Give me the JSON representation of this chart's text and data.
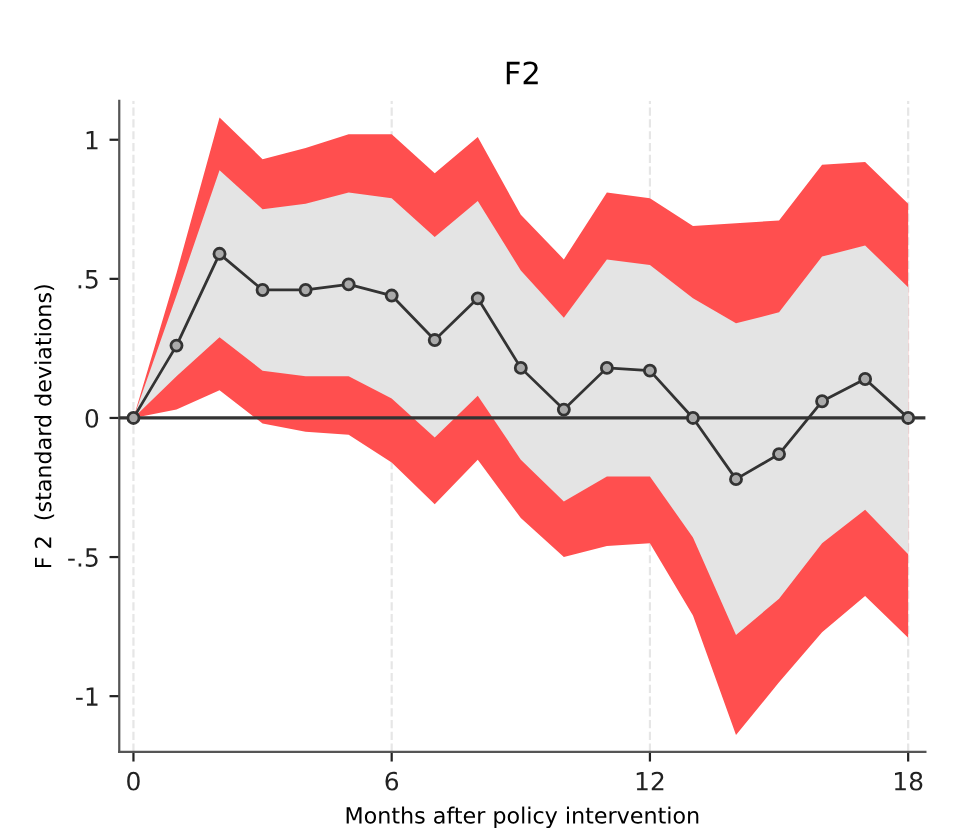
{
  "chart_data": {
    "type": "line",
    "title": "F2",
    "xlabel": "Months after policy intervention",
    "ylabel": "F 2  (standard deviations)",
    "x": [
      0,
      1,
      2,
      3,
      4,
      5,
      6,
      7,
      8,
      9,
      10,
      11,
      12,
      13,
      14,
      15,
      16,
      17,
      18
    ],
    "series": [
      {
        "type": "area",
        "color": "#ff4f4f",
        "values": [
          null,
          null,
          null,
          null,
          null,
          null,
          null,
          null,
          null,
          null,
          null,
          null,
          null,
          null,
          null,
          null,
          null,
          null,
          null
        ],
        "upper": [
          0,
          0.52,
          1.08,
          0.93,
          0.97,
          1.02,
          1.02,
          0.88,
          1.01,
          0.73,
          0.57,
          0.81,
          0.79,
          0.69,
          0.7,
          0.71,
          0.91,
          0.92,
          0.77
        ],
        "lower": [
          0,
          0.03,
          0.1,
          -0.02,
          -0.05,
          -0.06,
          -0.16,
          -0.31,
          -0.15,
          -0.36,
          -0.5,
          -0.46,
          -0.45,
          -0.71,
          -1.14,
          -0.95,
          -0.77,
          -0.64,
          -0.79
        ]
      },
      {
        "type": "area",
        "color": "#e4e4e4",
        "values": [
          null,
          null,
          null,
          null,
          null,
          null,
          null,
          null,
          null,
          null,
          null,
          null,
          null,
          null,
          null,
          null,
          null,
          null,
          null
        ],
        "upper": [
          0,
          0.44,
          0.89,
          0.75,
          0.77,
          0.81,
          0.79,
          0.65,
          0.78,
          0.53,
          0.36,
          0.57,
          0.55,
          0.43,
          0.34,
          0.38,
          0.58,
          0.62,
          0.47
        ],
        "lower": [
          0,
          0.15,
          0.29,
          0.17,
          0.15,
          0.15,
          0.07,
          -0.07,
          0.08,
          -0.15,
          -0.3,
          -0.21,
          -0.21,
          -0.43,
          -0.78,
          -0.65,
          -0.45,
          -0.33,
          -0.49
        ]
      },
      {
        "type": "line",
        "color": "#333333",
        "marker": "circle",
        "values": [
          0,
          0.26,
          0.59,
          0.46,
          0.46,
          0.48,
          0.44,
          0.28,
          0.43,
          0.18,
          0.03,
          0.18,
          0.17,
          0,
          -0.22,
          -0.13,
          0.06,
          0.14,
          0
        ]
      }
    ],
    "xlim": [
      -0.33,
      18.4
    ],
    "ylim": [
      -1.2,
      1.14
    ],
    "xticks": [
      0,
      6,
      12,
      18
    ],
    "yticks": [
      {
        "value": -1,
        "label": "-1"
      },
      {
        "value": -0.5,
        "label": "-.5"
      },
      0,
      {
        "value": 0.5,
        "label": ".5"
      },
      1
    ],
    "ref_lines": [
      {
        "axis": "y",
        "value": 0,
        "color": "#333333"
      }
    ],
    "grid": "x",
    "line_style": "solid"
  }
}
